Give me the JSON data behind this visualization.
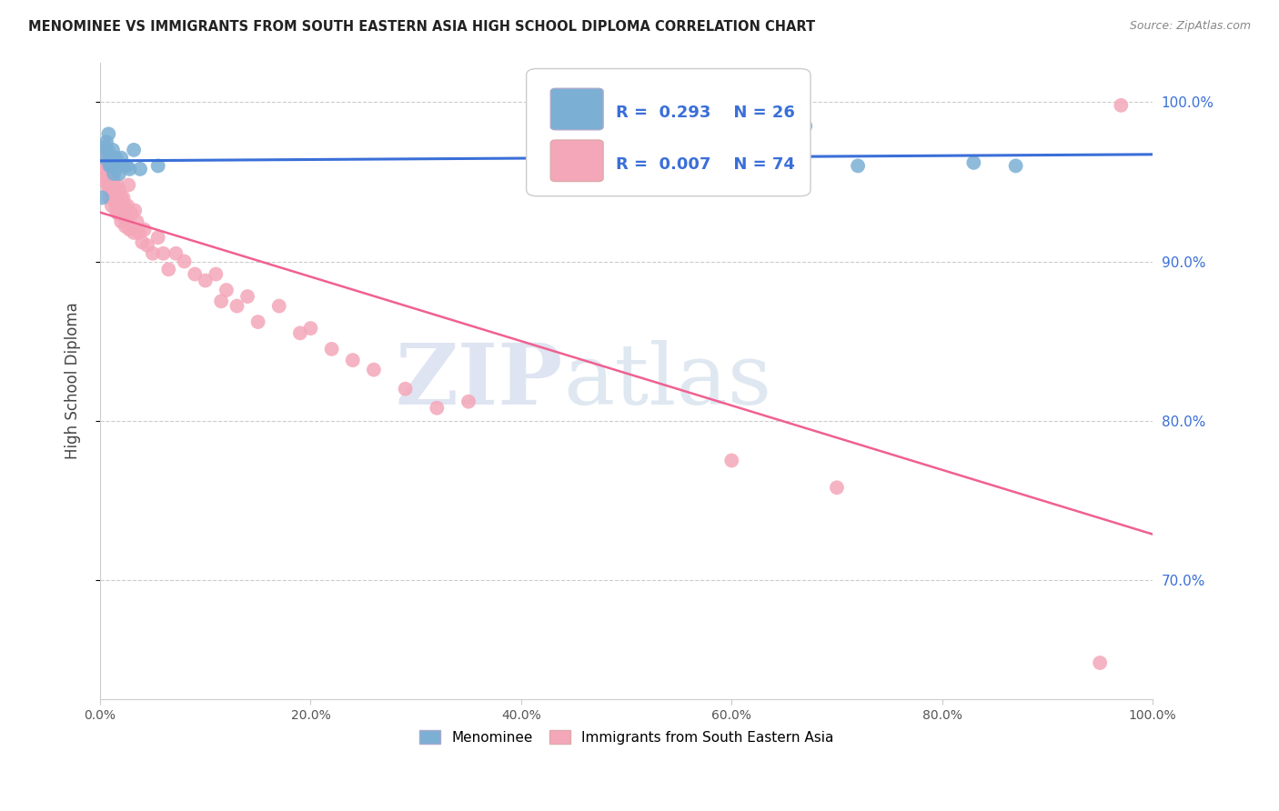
{
  "title": "MENOMINEE VS IMMIGRANTS FROM SOUTH EASTERN ASIA HIGH SCHOOL DIPLOMA CORRELATION CHART",
  "source": "Source: ZipAtlas.com",
  "ylabel": "High School Diploma",
  "xlim": [
    0.0,
    1.0
  ],
  "ylim": [
    0.625,
    1.025
  ],
  "yticks": [
    0.7,
    0.8,
    0.9,
    1.0
  ],
  "ytick_labels": [
    "70.0%",
    "80.0%",
    "90.0%",
    "100.0%"
  ],
  "xticks": [
    0.0,
    0.2,
    0.4,
    0.6,
    0.8,
    1.0
  ],
  "xtick_labels": [
    "0.0%",
    "20.0%",
    "40.0%",
    "60.0%",
    "80.0%",
    "100.0%"
  ],
  "menominee_R": 0.293,
  "menominee_N": 26,
  "immigrants_R": 0.007,
  "immigrants_N": 74,
  "menominee_color": "#7bafd4",
  "immigrants_color": "#f4a7b9",
  "line_menominee_color": "#3a6fd8",
  "line_immigrants_color": "#f06090",
  "watermark_zip": "ZIP",
  "watermark_atlas": "atlas",
  "background_color": "#ffffff",
  "grid_color": "#cccccc",
  "menominee_x": [
    0.002,
    0.004,
    0.005,
    0.006,
    0.007,
    0.008,
    0.009,
    0.01,
    0.011,
    0.012,
    0.013,
    0.015,
    0.017,
    0.018,
    0.02,
    0.022,
    0.025,
    0.028,
    0.032,
    0.038,
    0.055,
    0.62,
    0.67,
    0.72,
    0.83,
    0.87
  ],
  "menominee_y": [
    0.94,
    0.965,
    0.972,
    0.975,
    0.97,
    0.98,
    0.96,
    0.965,
    0.96,
    0.97,
    0.955,
    0.965,
    0.96,
    0.955,
    0.965,
    0.96,
    0.96,
    0.958,
    0.97,
    0.958,
    0.96,
    0.968,
    0.985,
    0.96,
    0.962,
    0.96
  ],
  "immigrants_x": [
    0.002,
    0.003,
    0.003,
    0.004,
    0.005,
    0.005,
    0.006,
    0.007,
    0.007,
    0.008,
    0.008,
    0.009,
    0.009,
    0.01,
    0.01,
    0.011,
    0.011,
    0.012,
    0.013,
    0.013,
    0.014,
    0.015,
    0.015,
    0.016,
    0.017,
    0.017,
    0.018,
    0.018,
    0.019,
    0.02,
    0.02,
    0.022,
    0.022,
    0.023,
    0.024,
    0.025,
    0.026,
    0.027,
    0.028,
    0.03,
    0.032,
    0.033,
    0.035,
    0.037,
    0.04,
    0.042,
    0.045,
    0.05,
    0.055,
    0.06,
    0.065,
    0.072,
    0.08,
    0.09,
    0.1,
    0.11,
    0.115,
    0.12,
    0.13,
    0.14,
    0.15,
    0.17,
    0.19,
    0.2,
    0.22,
    0.24,
    0.26,
    0.29,
    0.32,
    0.35,
    0.6,
    0.7,
    0.95,
    0.97
  ],
  "immigrants_y": [
    0.968,
    0.96,
    0.955,
    0.958,
    0.965,
    0.958,
    0.95,
    0.955,
    0.948,
    0.952,
    0.945,
    0.952,
    0.94,
    0.958,
    0.945,
    0.948,
    0.935,
    0.95,
    0.945,
    0.938,
    0.942,
    0.94,
    0.932,
    0.948,
    0.938,
    0.93,
    0.945,
    0.93,
    0.935,
    0.94,
    0.925,
    0.94,
    0.928,
    0.935,
    0.922,
    0.928,
    0.935,
    0.948,
    0.92,
    0.93,
    0.918,
    0.932,
    0.925,
    0.918,
    0.912,
    0.92,
    0.91,
    0.905,
    0.915,
    0.905,
    0.895,
    0.905,
    0.9,
    0.892,
    0.888,
    0.892,
    0.875,
    0.882,
    0.872,
    0.878,
    0.862,
    0.872,
    0.855,
    0.858,
    0.845,
    0.838,
    0.832,
    0.82,
    0.808,
    0.812,
    0.775,
    0.758,
    0.648,
    0.998
  ]
}
